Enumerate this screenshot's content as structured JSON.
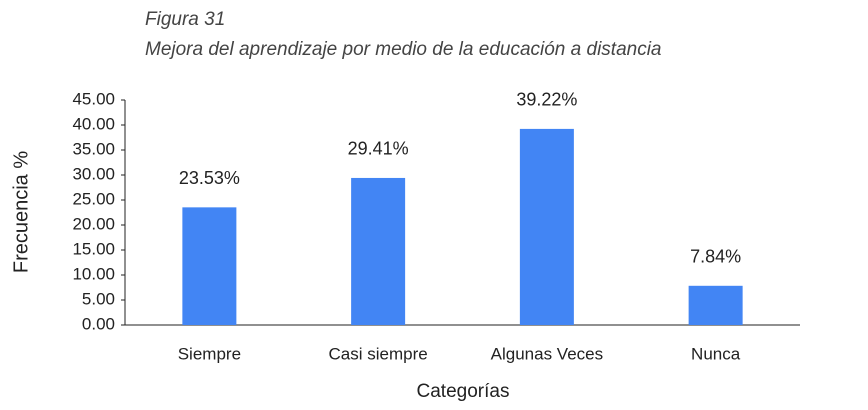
{
  "chart_data": {
    "type": "bar",
    "title": "Figura 31",
    "subtitle": "Mejora del aprendizaje por medio de la educación a distancia",
    "x_label": "Categorías",
    "y_label": "Frecuencia %",
    "categories": [
      "Siempre",
      "Casi siempre",
      "Algunas Veces",
      "Nunca"
    ],
    "values": [
      23.53,
      29.41,
      39.22,
      7.84
    ],
    "value_labels": [
      "23.53%",
      "29.41%",
      "39.22%",
      "7.84%"
    ],
    "color": "#4285f4",
    "ylim": [
      0,
      45
    ],
    "yticks": [
      {
        "value": 0,
        "label": "0.00"
      },
      {
        "value": 5,
        "label": "5.00"
      },
      {
        "value": 10,
        "label": "10.00"
      },
      {
        "value": 15,
        "label": "15.00"
      },
      {
        "value": 20,
        "label": "20.00"
      },
      {
        "value": 25,
        "label": "25.00"
      },
      {
        "value": 30,
        "label": "30.00"
      },
      {
        "value": 35,
        "label": "35.00"
      },
      {
        "value": 40,
        "label": "40.00"
      },
      {
        "value": 45,
        "label": "45.00"
      }
    ],
    "grid": false
  }
}
